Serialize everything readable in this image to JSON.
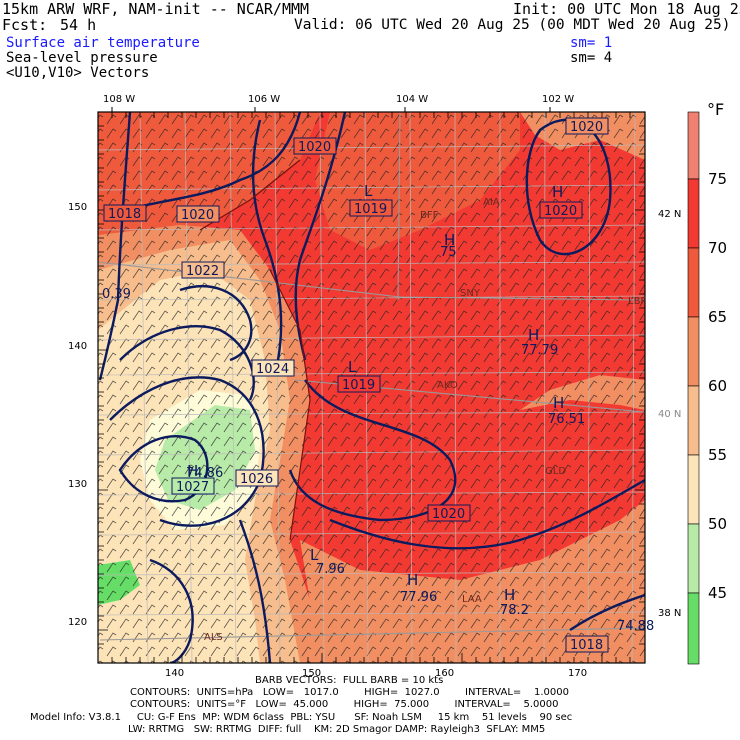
{
  "header": {
    "model": "15km ARW WRF, NAM-init -- NCAR/MMM",
    "init": "Init: 00 UTC Mon 18 Aug 25",
    "fcst_label": "Fcst:",
    "fcst_value": "54 h",
    "valid": "Valid: 06 UTC Wed 20 Aug 25 (00 MDT Wed 20 Aug 25)",
    "field1": "Surface air temperature",
    "field2": "Sea-level pressure",
    "field3": "<U10,V10> Vectors",
    "sm1": "sm= 1",
    "sm2": "sm= 4"
  },
  "map": {
    "lon_labels": [
      "108 W",
      "106 W",
      "104 W",
      "102 W"
    ],
    "lat_labels": [
      "42 N",
      "40 N",
      "38 N"
    ],
    "x_ticks": [
      "140",
      "150",
      "160",
      "170"
    ],
    "y_ticks": [
      "150",
      "140",
      "130",
      "120"
    ],
    "pressure_boxes": [
      "1020",
      "1020",
      "1018",
      "1020",
      "1022",
      "1020",
      "1019",
      "1024",
      "1019",
      "1026",
      "1027",
      "1020",
      "1018"
    ],
    "highs": [
      "H",
      "H",
      "H",
      "H",
      "H",
      "H",
      "H"
    ],
    "lows": [
      "L",
      "L",
      "L"
    ],
    "values": [
      "75",
      "77.79",
      "76.51",
      "77.96",
      "78.2",
      "74.86",
      "74.88",
      "7.96",
      "0.39"
    ],
    "stations": [
      "BFF",
      "AIA",
      "SNY",
      "LBF",
      "AKO",
      "GLD",
      "LAA",
      "ALS"
    ]
  },
  "colorbar": {
    "unit": "°F",
    "labels": [
      "75",
      "70",
      "65",
      "60",
      "55",
      "50",
      "45"
    ],
    "colors": [
      "#f08070",
      "#f23a33",
      "#ef5a3d",
      "#f28f62",
      "#f7bd8c",
      "#fde3b8",
      "#fdfbd8",
      "#b8eaa8",
      "#66dd66"
    ]
  },
  "footer": {
    "barb": "BARB VECTORS:  FULL BARB = 10 kts",
    "contours1": "CONTOURS:  UNITS=hPa   LOW=   1017.0        HIGH=  1027.0        INTERVAL=    1.0000",
    "contours2": "CONTOURS:  UNITS=°F   LOW=  45.000        HIGH=  75.000        INTERVAL=    5.0000",
    "model1": "Model Info: V3.8.1     CU: G-F Ens  MP: WDM 6class  PBL: YSU      SF: Noah LSM     15 km    51 levels    90 sec",
    "model2": "LW: RRTMG   SW: RRTMG  DIFF: full    KM: 2D Smagor DAMP: Rayleigh3  SFLAY: MM5"
  }
}
